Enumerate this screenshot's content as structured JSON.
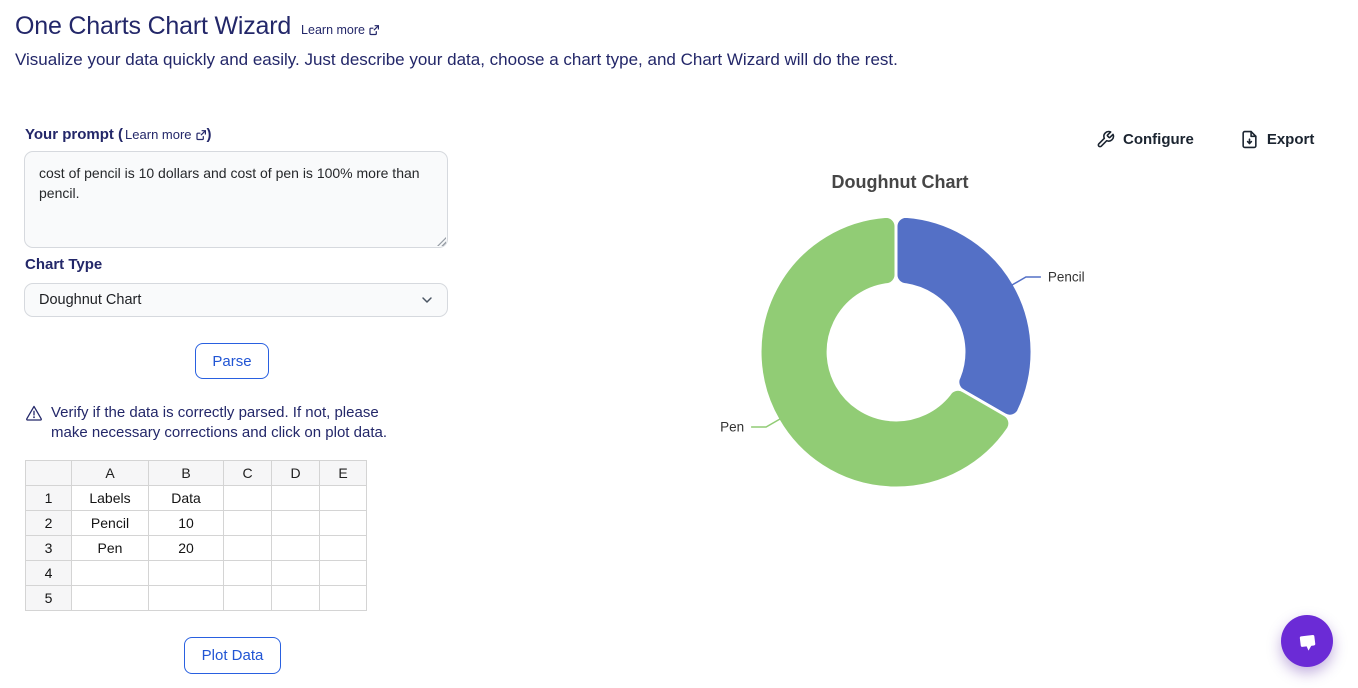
{
  "header": {
    "title": "One Charts Chart Wizard",
    "learn_more": "Learn more",
    "subtitle": "Visualize your data quickly and easily. Just describe your data, choose a chart type, and Chart Wizard will do the rest."
  },
  "prompt": {
    "label_prefix": "Your prompt (",
    "learn_more": "Learn more",
    "label_suffix": ")",
    "value": "cost of pencil is 10 dollars and cost of pen is 100% more than pencil."
  },
  "chart_type": {
    "label": "Chart Type",
    "selected": "Doughnut Chart"
  },
  "buttons": {
    "parse": "Parse",
    "plot_data": "Plot Data"
  },
  "warning": {
    "text": "Verify if the data is correctly parsed. If not, please make necessary corrections and click on plot data."
  },
  "sheet": {
    "columns": [
      "A",
      "B",
      "C",
      "D",
      "E"
    ],
    "rows": [
      {
        "num": "1",
        "cells": [
          "Labels",
          "Data",
          "",
          "",
          ""
        ]
      },
      {
        "num": "2",
        "cells": [
          "Pencil",
          "10",
          "",
          "",
          ""
        ]
      },
      {
        "num": "3",
        "cells": [
          "Pen",
          "20",
          "",
          "",
          ""
        ]
      },
      {
        "num": "4",
        "cells": [
          "",
          "",
          "",
          "",
          ""
        ]
      },
      {
        "num": "5",
        "cells": [
          "",
          "",
          "",
          "",
          ""
        ]
      }
    ]
  },
  "toolbar": {
    "configure": "Configure",
    "export": "Export"
  },
  "chart_data": {
    "type": "pie",
    "subtype": "doughnut",
    "title": "Doughnut Chart",
    "labels": [
      "Pencil",
      "Pen"
    ],
    "values": [
      10,
      20
    ],
    "colors": [
      "#5470c6",
      "#91cc75"
    ],
    "inner_radius_ratio": 0.5,
    "start_angle_deg": 0,
    "label_style": "callout",
    "legend_position": "none"
  },
  "colors": {
    "navy_text": "#232769",
    "button_blue": "#2960e0",
    "chat_purple": "#6b2bd6",
    "segment_blue": "#5470c6",
    "segment_green": "#91cc75"
  }
}
